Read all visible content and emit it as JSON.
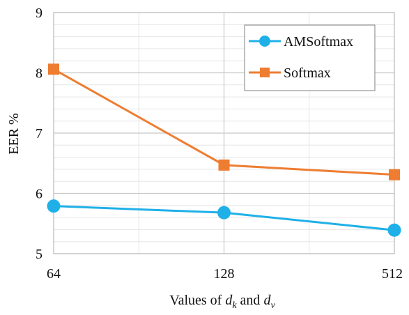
{
  "chart_data": {
    "type": "line",
    "categories": [
      "64",
      "128",
      "512"
    ],
    "series": [
      {
        "name": "AMSoftmax",
        "values": [
          5.79,
          5.68,
          5.39
        ],
        "color": "#1fb0e8",
        "marker": "circle"
      },
      {
        "name": "Softmax",
        "values": [
          8.06,
          6.47,
          6.31
        ],
        "color": "#ee7d31",
        "marker": "square"
      }
    ],
    "title": "",
    "xlabel": {
      "prefix": "Values of ",
      "var1": "d",
      "sub1": "k",
      "middle": " and ",
      "var2": "d",
      "sub2": "v"
    },
    "ylabel": "EER %",
    "ylim": [
      5,
      9
    ],
    "yticks": [
      "5",
      "6",
      "7",
      "8",
      "9"
    ],
    "grid": true,
    "legend": "top-right"
  }
}
